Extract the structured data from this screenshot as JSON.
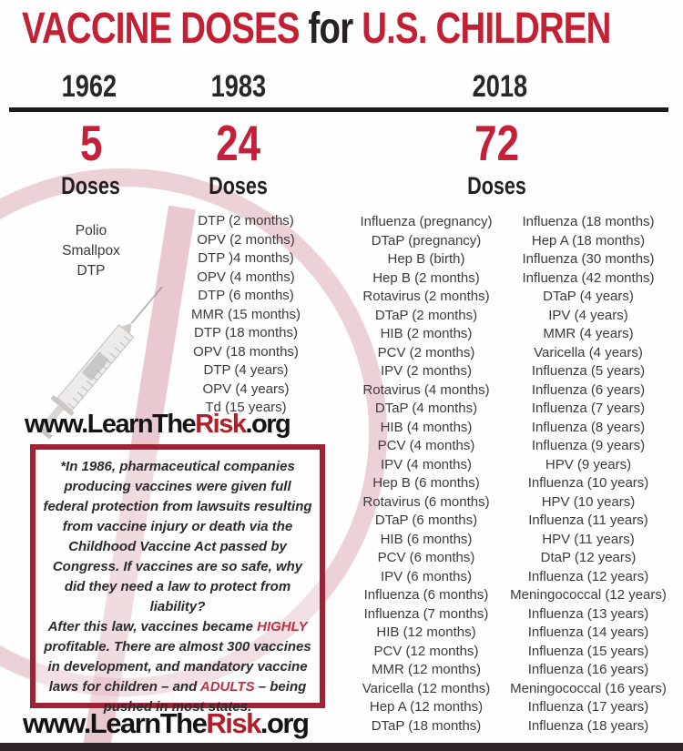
{
  "title": {
    "lead": "VACCINE DOSES",
    "mid": " for ",
    "tail": "U.S. CHILDREN"
  },
  "colors": {
    "title_red": "#c22033",
    "count_red": "#c5203a",
    "risk_red": "#b01e28",
    "box_border_maroon": "#a02236",
    "footer_bar_dark": "#302628",
    "text_dark": "#231f20"
  },
  "icons": {
    "syringe": "syringe-icon",
    "prohibition_ring": "prohibition-circle-icon",
    "prohibition_slash": "prohibition-slash-icon"
  },
  "columns": {
    "y1962": {
      "year": "1962",
      "count": "5",
      "doses_label": "Doses",
      "items": [
        "Polio",
        "Smallpox",
        "DTP"
      ]
    },
    "y1983": {
      "year": "1983",
      "count": "24",
      "doses_label": "Doses",
      "items": [
        "DTP (2 months)",
        "OPV (2 months)",
        "DTP )4 months)",
        "OPV (4 months)",
        "DTP (6 months)",
        "MMR (15 months)",
        "DTP (18 months)",
        "OPV (18 months)",
        "DTP (4 years)",
        "OPV (4 years)",
        "Td (15 years)"
      ]
    },
    "y2018": {
      "year": "2018",
      "count": "72",
      "doses_label": "Doses",
      "items_left": [
        "Influenza (pregnancy)",
        "DTaP (pregnancy)",
        "Hep B (birth)",
        "Hep B (2 months)",
        "Rotavirus (2 months)",
        "DTaP (2 months)",
        "HIB (2 months)",
        "PCV (2 months)",
        "IPV (2 months)",
        "Rotavirus (4 months)",
        "DTaP (4 months)",
        "HIB (4 months)",
        "PCV (4 months)",
        "IPV (4 months)",
        "Hep B (6 months)",
        "Rotavirus (6 months)",
        "DTaP (6 months)",
        "HIB (6 months)",
        "PCV (6 months)",
        "IPV (6 months)",
        "Influenza (6 months)",
        "Influenza (7 months)",
        "HIB (12 months)",
        "PCV (12 months)",
        "MMR (12 months)",
        "Varicella (12 months)",
        "Hep A (12 months)",
        "DTaP (18 months)"
      ],
      "items_right": [
        "Influenza (18 months)",
        "Hep A (18 months)",
        "Influenza (30 months)",
        "Influenza (42 months)",
        "DTaP (4 years)",
        "IPV (4 years)",
        "MMR (4 years)",
        "Varicella (4 years)",
        "Influenza (5 years)",
        "Influenza (6 years)",
        "Influenza (7 years)",
        "Influenza (8 years)",
        "Influenza (9 years)",
        "HPV (9 years)",
        "Influenza (10 years)",
        "HPV (10 years)",
        "Influenza (11 years)",
        "HPV (11 years)",
        "DtaP (12 years)",
        "Influenza (12 years)",
        "Meningococcal (12 years)",
        "Influenza (13 years)",
        "Influenza (14 years)",
        "Influenza (15 years)",
        "Influenza (16 years)",
        "Meningococcal (16 years)",
        "Influenza (17 years)",
        "Influenza (18 years)"
      ]
    }
  },
  "website": {
    "pre": "www.LearnThe",
    "highlight": "Risk",
    "post": ".org"
  },
  "note": {
    "para1": "*In 1986, pharmaceutical companies producing vaccines were given full federal protection from lawsuits resulting from vaccine injury or death via the Childhood Vaccine Act passed by Congress. If vaccines are so safe, why did they need a law to protect from liability?",
    "para2_segments": [
      {
        "t": "After this law, vaccines became "
      },
      {
        "t": "HIGHLY",
        "red": true
      },
      {
        "t": " profitable. There are almost 300 vaccines in development, and mandatory vaccine laws for children – and "
      },
      {
        "t": "ADULTS",
        "red": true
      },
      {
        "t": " – being pushed in most states."
      }
    ]
  }
}
